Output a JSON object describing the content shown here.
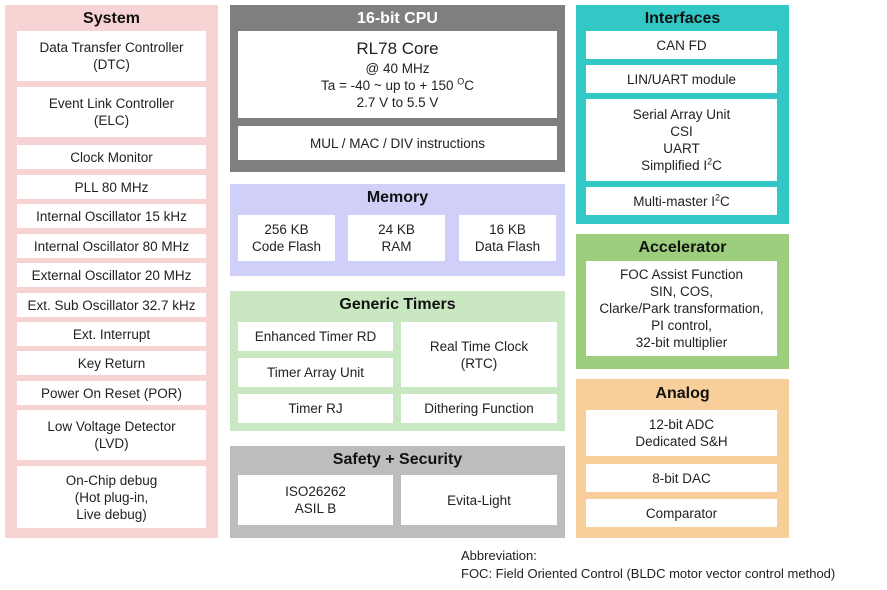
{
  "system": {
    "title": "System",
    "items": [
      [
        "Data Transfer Controller",
        "(DTC)"
      ],
      [
        "Event Link Controller",
        "(ELC)"
      ],
      [
        "Clock Monitor"
      ],
      [
        "PLL 80 MHz"
      ],
      [
        "Internal Oscillator 15 kHz"
      ],
      [
        "Internal Oscillator 80 MHz"
      ],
      [
        "External Oscillator 20 MHz"
      ],
      [
        "Ext. Sub Oscillator 32.7 kHz"
      ],
      [
        "Ext. Interrupt"
      ],
      [
        "Key Return"
      ],
      [
        "Power On Reset (POR)"
      ],
      [
        "Low Voltage Detector",
        "(LVD)"
      ],
      [
        "On-Chip debug",
        "(Hot plug-in,",
        "Live debug)"
      ]
    ]
  },
  "cpu": {
    "title": "16-bit CPU",
    "core_name": "RL78 Core",
    "core_freq": "@ 40 MHz",
    "core_temp_prefix": "Ta = -40 ~ up to + 150 ",
    "core_temp_sup": "O",
    "core_temp_unit": "C",
    "core_voltage": "2.7 V to 5.5 V",
    "instructions": "MUL / MAC / DIV instructions"
  },
  "memory": {
    "title": "Memory",
    "items": [
      [
        "256 KB",
        "Code Flash"
      ],
      [
        "24 KB",
        "RAM"
      ],
      [
        "16 KB",
        "Data Flash"
      ]
    ]
  },
  "timers": {
    "title": "Generic Timers",
    "enhanced": "Enhanced Timer RD",
    "array": "Timer Array Unit",
    "rj": "Timer RJ",
    "rtc_line1": "Real Time Clock",
    "rtc_line2": "(RTC)",
    "dithering": "Dithering Function"
  },
  "safety": {
    "title": "Safety + Security",
    "iso_line1": "ISO26262",
    "iso_line2": "ASIL B",
    "evita": "Evita-Light"
  },
  "interfaces": {
    "title": "Interfaces",
    "can": "CAN FD",
    "lin": "LIN/UART module",
    "sau_line1": "Serial Array Unit",
    "sau_line2": "CSI",
    "sau_line3": "UART",
    "sau_line4_prefix": "Simplified I",
    "sau_line4_sup": "2",
    "sau_line4_suffix": "C",
    "mm_prefix": "Multi-master I",
    "mm_sup": "2",
    "mm_suffix": "C"
  },
  "accelerator": {
    "title": "Accelerator",
    "lines": [
      "FOC Assist Function",
      "SIN, COS,",
      "Clarke/Park transformation,",
      "PI control,",
      "32-bit multiplier"
    ]
  },
  "analog": {
    "title": "Analog",
    "adc_line1": "12-bit ADC",
    "adc_line2": "Dedicated S&H",
    "dac": "8-bit DAC",
    "comparator": "Comparator"
  },
  "note": {
    "heading": "Abbreviation:",
    "text": "FOC: Field Oriented Control (BLDC motor vector control method)"
  },
  "colors": {
    "system": "#f8d3d3",
    "cpu": "#7f7f7f",
    "memory": "#cfcff8",
    "timers": "#c9e8c2",
    "safety": "#bdbdbd",
    "interfaces": "#32c8c6",
    "accelerator": "#9cce7e",
    "analog": "#f8cf9a"
  }
}
